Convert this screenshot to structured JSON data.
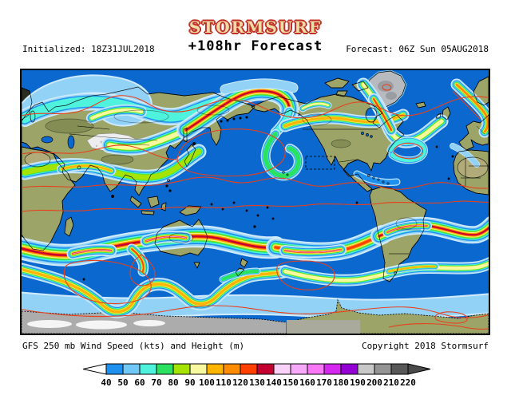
{
  "header": {
    "logo": "STORMSURF",
    "initialized": "Initialized: 18Z31JUL2018",
    "title": "+108hr Forecast",
    "forecast": "Forecast: 06Z Sun 05AUG2018"
  },
  "footer": {
    "product": "GFS 250 mb Wind Speed (kts) and Height (m)",
    "copyright": "Copyright 2018 Stormsurf"
  },
  "colorbar": {
    "tick_labels": [
      "40",
      "50",
      "60",
      "70",
      "80",
      "90",
      "100",
      "110",
      "120",
      "130",
      "140",
      "150",
      "160",
      "170",
      "180",
      "190",
      "200",
      "210",
      "220"
    ],
    "cell_colors": [
      "#1E90F0",
      "#6FC8F8",
      "#4FF2DC",
      "#2BE160",
      "#A4E400",
      "#F8F89E",
      "#FFB400",
      "#FF8C00",
      "#FF4000",
      "#C40030",
      "#F8D2F8",
      "#F8A8F8",
      "#F878F8",
      "#D428F0",
      "#9400D4",
      "#C8C8C8",
      "#949494",
      "#585858"
    ]
  },
  "map_colors": {
    "ocean": "#0A68CE",
    "land": "#9CA468",
    "height_contour": "#E8401C",
    "ice": "#EDEDED",
    "greenland": "#B7BBBF",
    "antarctica_gray": "#ACACAC"
  },
  "logo_colors": {
    "fill": "#F0DCA6",
    "outline": "#C13028"
  }
}
